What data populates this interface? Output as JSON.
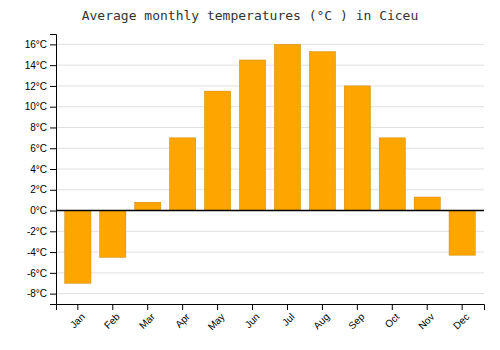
{
  "chart_data": {
    "type": "bar",
    "title": "Average monthly temperatures (°C ) in Ciceu",
    "categories": [
      "Jan",
      "Feb",
      "Mar",
      "Apr",
      "May",
      "Jun",
      "Jul",
      "Aug",
      "Sep",
      "Oct",
      "Nov",
      "Dec"
    ],
    "values": [
      -7.0,
      -4.5,
      0.8,
      7.0,
      11.5,
      14.5,
      16.0,
      15.3,
      12.0,
      7.0,
      1.3,
      -4.3
    ],
    "color": "#FFA500",
    "ylim": [
      -9,
      17
    ],
    "yticks": [
      {
        "value": -8,
        "label": "-8°C"
      },
      {
        "value": -6,
        "label": "-6°C"
      },
      {
        "value": -4,
        "label": "-4°C"
      },
      {
        "value": -2,
        "label": "-2°C"
      },
      {
        "value": 0,
        "label": "0°C"
      },
      {
        "value": 2,
        "label": "2°C"
      },
      {
        "value": 4,
        "label": "4°C"
      },
      {
        "value": 6,
        "label": "6°C"
      },
      {
        "value": 8,
        "label": "8°C"
      },
      {
        "value": 10,
        "label": "10°C"
      },
      {
        "value": 12,
        "label": "12°C"
      },
      {
        "value": 14,
        "label": "14°C"
      },
      {
        "value": 16,
        "label": "16°C"
      }
    ],
    "grid": true
  }
}
